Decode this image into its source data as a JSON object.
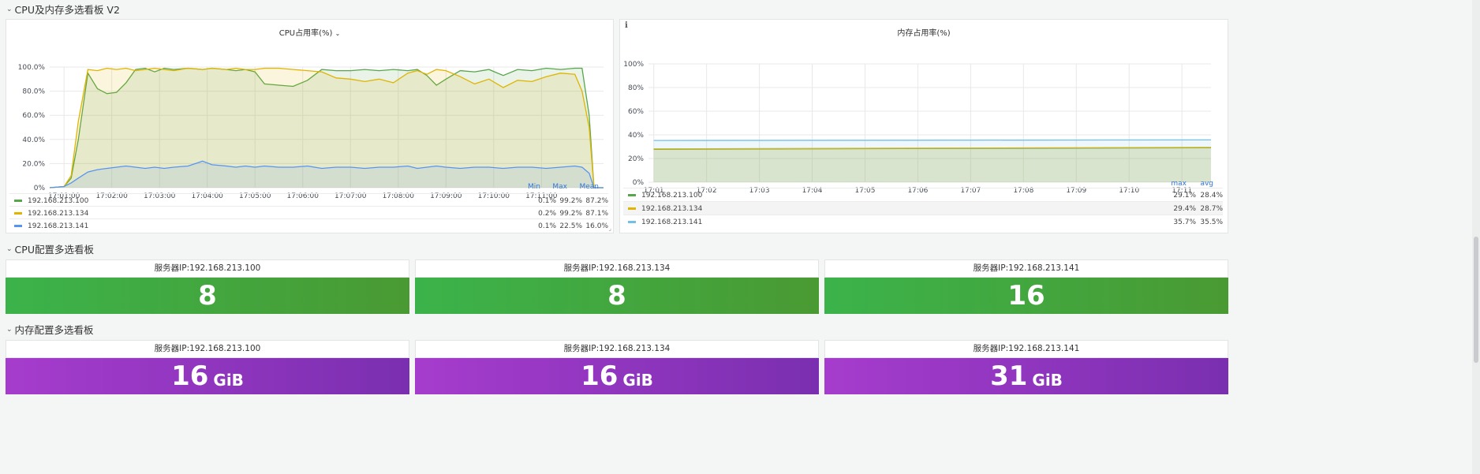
{
  "rows": [
    {
      "title": "CPU及内存多选看板 V2"
    },
    {
      "title": "CPU配置多选看板"
    },
    {
      "title": "内存配置多选看板"
    }
  ],
  "cpu_panel": {
    "title": "CPU占用率(%)",
    "legend_headers": [
      "Min",
      "Max",
      "Mean"
    ],
    "legend": [
      {
        "name": "192.168.213.100",
        "color": "#56a64b",
        "values": [
          "0.1%",
          "99.2%",
          "87.2%"
        ]
      },
      {
        "name": "192.168.213.134",
        "color": "#e0b400",
        "values": [
          "0.2%",
          "99.2%",
          "87.1%"
        ]
      },
      {
        "name": "192.168.213.141",
        "color": "#5794f2",
        "values": [
          "0.1%",
          "22.5%",
          "16.0%"
        ]
      }
    ]
  },
  "mem_panel": {
    "title": "内存占用率(%)",
    "info": "i",
    "legend_headers": [
      "max",
      "avg"
    ],
    "legend": [
      {
        "name": "192.168.213.100",
        "color": "#56a64b",
        "values": [
          "29.1%",
          "28.4%"
        ]
      },
      {
        "name": "192.168.213.134",
        "color": "#e0b400",
        "values": [
          "29.4%",
          "28.7%"
        ]
      },
      {
        "name": "192.168.213.141",
        "color": "#73bfe8",
        "values": [
          "35.7%",
          "35.5%"
        ]
      }
    ]
  },
  "cpu_stats": [
    {
      "title": "服务器IP:192.168.213.100",
      "value": "8"
    },
    {
      "title": "服务器IP:192.168.213.134",
      "value": "8"
    },
    {
      "title": "服务器IP:192.168.213.141",
      "value": "16"
    }
  ],
  "mem_stats": [
    {
      "title": "服务器IP:192.168.213.100",
      "value": "16",
      "unit": "GiB"
    },
    {
      "title": "服务器IP:192.168.213.134",
      "value": "16",
      "unit": "GiB"
    },
    {
      "title": "服务器IP:192.168.213.141",
      "value": "31",
      "unit": "GiB"
    }
  ],
  "chart_data": [
    {
      "type": "area",
      "title": "CPU占用率(%)",
      "y_ticks": [
        "0%",
        "20.0%",
        "40.0%",
        "60.0%",
        "80.0%",
        "100.0%"
      ],
      "ylim": [
        0,
        100
      ],
      "x_ticks": [
        "17:01:00",
        "17:02:00",
        "17:03:00",
        "17:04:00",
        "17:05:00",
        "17:06:00",
        "17:07:00",
        "17:08:00",
        "17:09:00",
        "17:10:00",
        "17:11:00"
      ],
      "xlim": [
        0.7,
        12.3
      ],
      "series": [
        {
          "name": "192.168.213.100",
          "color": "#56a64b",
          "x": [
            0.7,
            1.0,
            1.15,
            1.3,
            1.5,
            1.7,
            1.9,
            2.1,
            2.3,
            2.5,
            2.7,
            2.9,
            3.1,
            3.3,
            3.6,
            3.9,
            4.1,
            4.4,
            4.6,
            4.8,
            5.0,
            5.2,
            5.5,
            5.8,
            6.1,
            6.4,
            6.7,
            7.0,
            7.3,
            7.6,
            7.9,
            8.2,
            8.4,
            8.6,
            8.8,
            9.0,
            9.3,
            9.6,
            9.9,
            10.2,
            10.5,
            10.8,
            11.1,
            11.4,
            11.7,
            11.85,
            12.0,
            12.1,
            12.3
          ],
          "y": [
            0,
            1,
            8,
            40,
            95,
            82,
            78,
            79,
            87,
            98,
            99,
            96,
            99,
            98,
            99,
            98,
            99,
            98,
            97,
            98,
            96,
            86,
            85,
            84,
            89,
            98,
            97,
            97,
            98,
            97,
            98,
            97,
            98,
            93,
            85,
            90,
            97,
            96,
            98,
            93,
            98,
            97,
            99,
            98,
            99,
            99,
            60,
            0,
            0
          ]
        },
        {
          "name": "192.168.213.134",
          "color": "#e0b400",
          "x": [
            0.7,
            1.0,
            1.15,
            1.3,
            1.5,
            1.7,
            1.9,
            2.1,
            2.3,
            2.5,
            2.7,
            2.9,
            3.1,
            3.3,
            3.6,
            3.9,
            4.1,
            4.4,
            4.6,
            4.8,
            5.0,
            5.2,
            5.5,
            5.8,
            6.1,
            6.4,
            6.7,
            7.0,
            7.3,
            7.6,
            7.9,
            8.2,
            8.4,
            8.6,
            8.8,
            9.0,
            9.3,
            9.6,
            9.9,
            10.2,
            10.5,
            10.8,
            11.1,
            11.4,
            11.7,
            11.85,
            12.0,
            12.1,
            12.3
          ],
          "y": [
            0,
            1,
            10,
            55,
            98,
            97,
            99,
            98,
            99,
            97,
            98,
            99,
            98,
            97,
            99,
            98,
            99,
            98,
            99,
            98,
            98,
            99,
            99,
            98,
            97,
            96,
            91,
            90,
            88,
            90,
            87,
            95,
            97,
            94,
            98,
            97,
            92,
            86,
            90,
            83,
            89,
            88,
            92,
            95,
            94,
            80,
            50,
            0,
            0
          ]
        },
        {
          "name": "192.168.213.141",
          "color": "#5794f2",
          "x": [
            0.7,
            1.0,
            1.15,
            1.3,
            1.5,
            1.7,
            1.9,
            2.1,
            2.3,
            2.5,
            2.7,
            2.9,
            3.1,
            3.3,
            3.6,
            3.9,
            4.1,
            4.4,
            4.6,
            4.8,
            5.0,
            5.2,
            5.5,
            5.8,
            6.1,
            6.4,
            6.7,
            7.0,
            7.3,
            7.6,
            7.9,
            8.2,
            8.4,
            8.6,
            8.8,
            9.0,
            9.3,
            9.6,
            9.9,
            10.2,
            10.5,
            10.8,
            11.1,
            11.4,
            11.7,
            11.85,
            12.0,
            12.1,
            12.3
          ],
          "y": [
            0,
            1,
            4,
            8,
            13,
            15,
            16,
            17,
            18,
            17,
            16,
            17,
            16,
            17,
            18,
            22,
            19,
            18,
            17,
            18,
            17,
            18,
            17,
            17,
            18,
            16,
            17,
            17,
            16,
            17,
            17,
            18,
            16,
            17,
            18,
            17,
            16,
            17,
            17,
            16,
            17,
            17,
            16,
            17,
            18,
            17,
            12,
            0,
            0
          ]
        }
      ]
    },
    {
      "type": "area",
      "title": "内存占用率(%)",
      "y_ticks": [
        "0%",
        "20%",
        "40%",
        "60%",
        "80%",
        "100%"
      ],
      "ylim": [
        0,
        100
      ],
      "x_ticks": [
        "17:01",
        "17:02",
        "17:03",
        "17:04",
        "17:05",
        "17:06",
        "17:07",
        "17:08",
        "17:09",
        "17:10",
        "17:11"
      ],
      "xlim": [
        0.9,
        11.55
      ],
      "series": [
        {
          "name": "192.168.213.100",
          "color": "#56a64b",
          "x": [
            1,
            11.55
          ],
          "y": [
            27.8,
            29.1
          ]
        },
        {
          "name": "192.168.213.134",
          "color": "#e0b400",
          "x": [
            1,
            11.55
          ],
          "y": [
            28.1,
            29.4
          ]
        },
        {
          "name": "192.168.213.141",
          "color": "#73bfe8",
          "x": [
            1,
            11.55
          ],
          "y": [
            35.3,
            35.7
          ]
        }
      ]
    }
  ]
}
